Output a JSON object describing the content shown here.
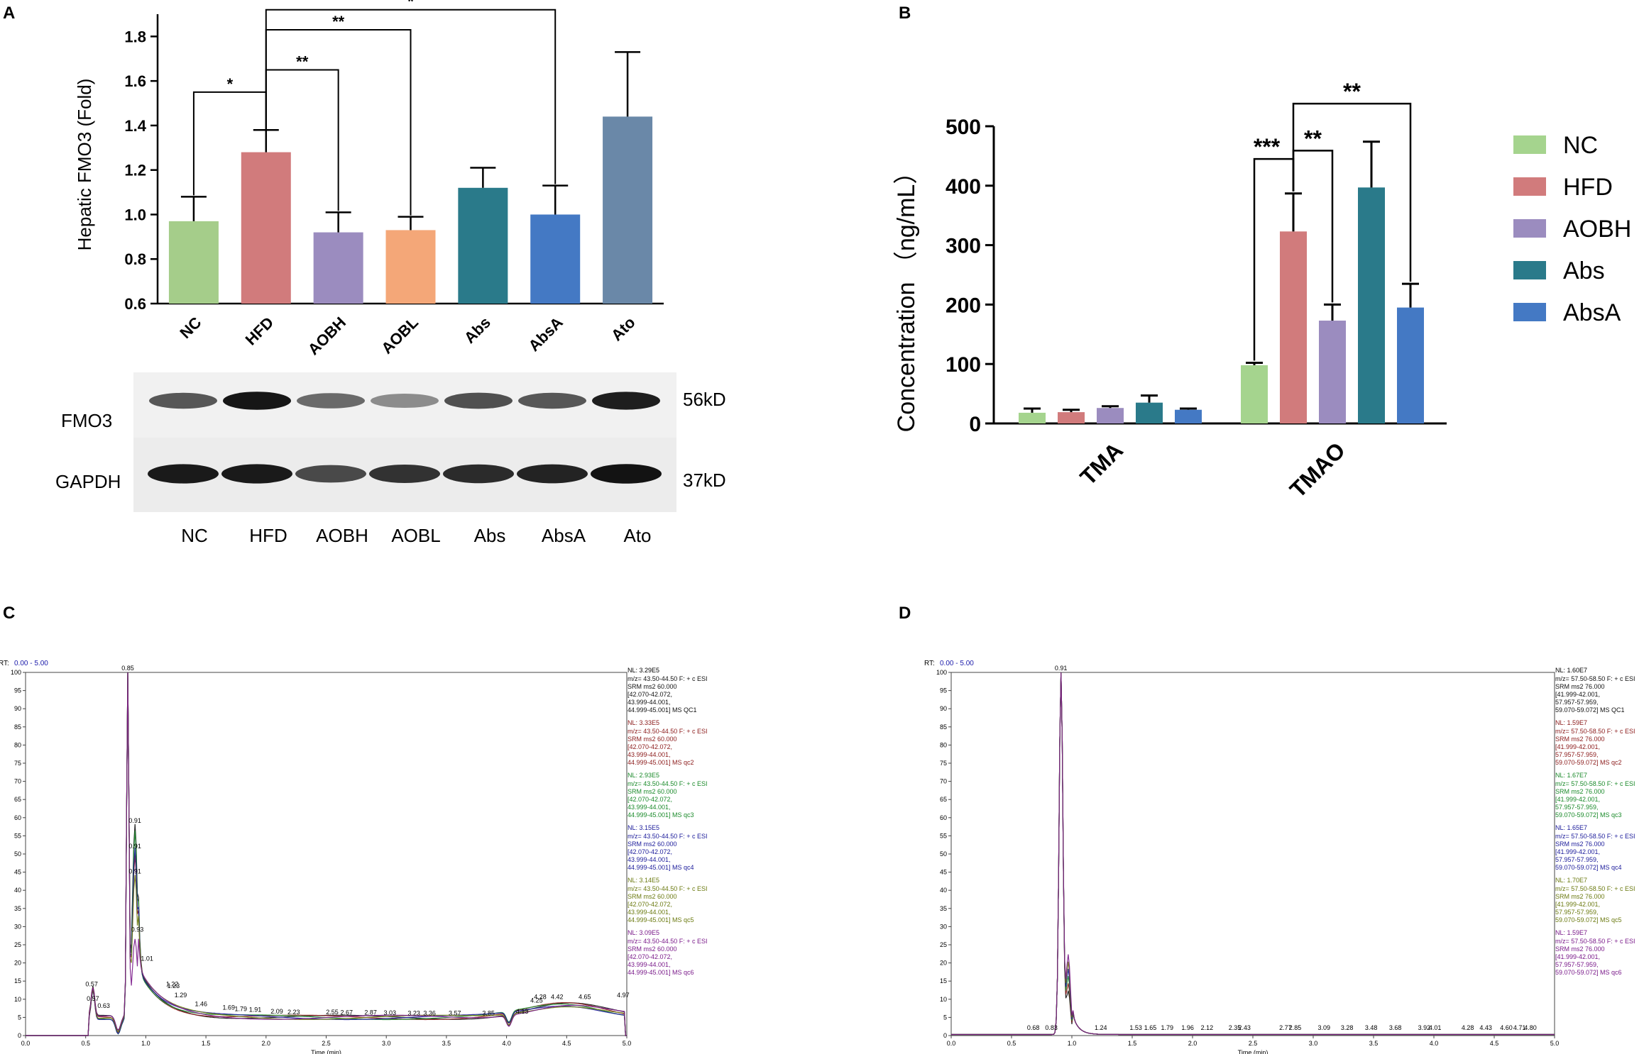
{
  "chart_data": [
    {
      "panel": "A",
      "type": "bar",
      "ylabel": "Hepatic FMO3 (Fold)",
      "ylim": [
        0.6,
        1.9
      ],
      "yticks": [
        "0.6",
        "0.8",
        "1.0",
        "1.2",
        "1.4",
        "1.6",
        "1.8"
      ],
      "categories": [
        "NC",
        "HFD",
        "AOBH",
        "AOBL",
        "Abs",
        "AbsA",
        "Ato"
      ],
      "values": [
        0.97,
        1.28,
        0.92,
        0.93,
        1.12,
        1.0,
        1.44
      ],
      "errors": [
        0.11,
        0.1,
        0.09,
        0.06,
        0.09,
        0.13,
        0.29
      ],
      "colors": [
        "#a5cd8a",
        "#d17b7c",
        "#9b8cbf",
        "#f4a778",
        "#2a7a8a",
        "#4479c4",
        "#6a88a8"
      ],
      "significance": [
        {
          "from": 0,
          "to": 1,
          "label": "*"
        },
        {
          "from": 1,
          "to": 2,
          "label": "**"
        },
        {
          "from": 1,
          "to": 3,
          "label": "**"
        },
        {
          "from": 1,
          "to": 5,
          "label": "*"
        }
      ],
      "western_blot": {
        "rows": [
          {
            "protein": "FMO3",
            "size": "56kD"
          },
          {
            "protein": "GAPDH",
            "size": "37kD"
          }
        ],
        "lanes": [
          "NC",
          "HFD",
          "AOBH",
          "AOBL",
          "Abs",
          "AbsA",
          "Ato"
        ],
        "band_intensity_fmo3": [
          0.55,
          0.95,
          0.45,
          0.25,
          0.6,
          0.55,
          0.9
        ],
        "band_intensity_gapdh": [
          0.9,
          0.9,
          0.6,
          0.75,
          0.8,
          0.85,
          0.95
        ]
      }
    },
    {
      "panel": "B",
      "type": "bar",
      "ylabel": "Concentration （ng/mL）",
      "ylim": [
        0,
        500
      ],
      "yticks": [
        "0",
        "100",
        "200",
        "300",
        "400",
        "500"
      ],
      "categories": [
        "TMA",
        "TMAO"
      ],
      "series": [
        {
          "name": "NC",
          "values": [
            18,
            98
          ],
          "errors": [
            7,
            4
          ],
          "color": "#a5d48e"
        },
        {
          "name": "HFD",
          "values": [
            19,
            323
          ],
          "errors": [
            4,
            64
          ],
          "color": "#d17b7c"
        },
        {
          "name": "AOBH",
          "values": [
            26,
            173
          ],
          "errors": [
            3,
            27
          ],
          "color": "#9b8cbf"
        },
        {
          "name": "Abs",
          "values": [
            35,
            397
          ],
          "errors": [
            12,
            77
          ],
          "color": "#2a7a8a"
        },
        {
          "name": "AbsA",
          "values": [
            23,
            195
          ],
          "errors": [
            2,
            40
          ],
          "color": "#4479c4"
        }
      ],
      "significance": [
        {
          "group": "TMAO",
          "from": 0,
          "to": 1,
          "label": "***"
        },
        {
          "group": "TMAO",
          "from": 1,
          "to": 2,
          "label": "**"
        },
        {
          "group": "TMAO",
          "from": 1,
          "to": 4,
          "label": "**"
        }
      ]
    },
    {
      "panel": "C",
      "type": "line",
      "rt_label": "RT: 0.00 - 5.00",
      "xlabel": "Time (min)",
      "xticks": [
        "0.0",
        "0.5",
        "1.0",
        "1.5",
        "2.0",
        "2.5",
        "3.0",
        "3.5",
        "4.0",
        "4.5",
        "5.0"
      ],
      "yticks": [
        "0",
        "5",
        "10",
        "15",
        "20",
        "25",
        "30",
        "35",
        "40",
        "45",
        "50",
        "55",
        "60",
        "65",
        "70",
        "75",
        "80",
        "85",
        "90",
        "95",
        "100"
      ],
      "peak_labels": [
        {
          "x": 0.85,
          "y": 100,
          "label": "0.85"
        },
        {
          "x": 0.55,
          "y": 13,
          "label": "0.57"
        },
        {
          "x": 0.56,
          "y": 9,
          "label": "0.57"
        },
        {
          "x": 0.65,
          "y": 7,
          "label": "0.63"
        },
        {
          "x": 0.91,
          "y": 58,
          "label": "0.91"
        },
        {
          "x": 0.91,
          "y": 51,
          "label": "0.91"
        },
        {
          "x": 0.91,
          "y": 44,
          "label": "0.91"
        },
        {
          "x": 0.93,
          "y": 28,
          "label": "0.93"
        },
        {
          "x": 1.01,
          "y": 20,
          "label": "1.01"
        },
        {
          "x": 1.22,
          "y": 13,
          "label": "1.22"
        },
        {
          "x": 1.23,
          "y": 12.5,
          "label": "1.23"
        },
        {
          "x": 1.29,
          "y": 10,
          "label": "1.29"
        },
        {
          "x": 1.46,
          "y": 7.5,
          "label": "1.46"
        },
        {
          "x": 1.69,
          "y": 6.5,
          "label": "1.69"
        },
        {
          "x": 1.79,
          "y": 6.2,
          "label": "1.79"
        },
        {
          "x": 1.91,
          "y": 6,
          "label": "1.91"
        },
        {
          "x": 2.09,
          "y": 5.5,
          "label": "2.09"
        },
        {
          "x": 2.23,
          "y": 5.3,
          "label": "2.23"
        },
        {
          "x": 2.55,
          "y": 5.3,
          "label": "2.55"
        },
        {
          "x": 2.67,
          "y": 5.2,
          "label": "2.67"
        },
        {
          "x": 2.87,
          "y": 5.2,
          "label": "2.87"
        },
        {
          "x": 3.03,
          "y": 5.1,
          "label": "3.03"
        },
        {
          "x": 3.23,
          "y": 5,
          "label": "3.23"
        },
        {
          "x": 3.36,
          "y": 5,
          "label": "3.36"
        },
        {
          "x": 3.57,
          "y": 5,
          "label": "3.57"
        },
        {
          "x": 3.85,
          "y": 5,
          "label": "3.85"
        },
        {
          "x": 4.13,
          "y": 5.5,
          "label": "4.13"
        },
        {
          "x": 4.25,
          "y": 8.5,
          "label": "4.25"
        },
        {
          "x": 4.28,
          "y": 9.5,
          "label": "4.28"
        },
        {
          "x": 4.42,
          "y": 9.5,
          "label": "4.42"
        },
        {
          "x": 4.65,
          "y": 9.5,
          "label": "4.65"
        },
        {
          "x": 4.97,
          "y": 10,
          "label": "4.97"
        }
      ],
      "traces": [
        {
          "color": "#111111",
          "NL": "NL: 3.29E5",
          "lines": [
            "m/z= 43.50-44.50 F: + c ESI",
            "SRM ms2 60.000",
            "[42.070-42.072,",
            "43.999-44.001,",
            "44.999-45.001]  MS QC1"
          ]
        },
        {
          "color": "#8b1a1a",
          "NL": "NL: 3.33E5",
          "lines": [
            "m/z= 43.50-44.50 F: + c ESI",
            "SRM ms2 60.000",
            "[42.070-42.072,",
            "43.999-44.001,",
            "44.999-45.001]  MS qc2"
          ]
        },
        {
          "color": "#1a8a2a",
          "NL": "NL: 2.93E5",
          "lines": [
            "m/z= 43.50-44.50 F: + c ESI",
            "SRM ms2 60.000",
            "[42.070-42.072,",
            "43.999-44.001,",
            "44.999-45.001]  MS qc3"
          ]
        },
        {
          "color": "#1a1a9a",
          "NL": "NL: 3.15E5",
          "lines": [
            "m/z= 43.50-44.50 F: + c ESI",
            "SRM ms2 60.000",
            "[42.070-42.072,",
            "43.999-44.001,",
            "44.999-45.001]  MS qc4"
          ]
        },
        {
          "color": "#6b7a10",
          "NL": "NL: 3.14E5",
          "lines": [
            "m/z= 43.50-44.50 F: + c ESI",
            "SRM ms2 60.000",
            "[42.070-42.072,",
            "43.999-44.001,",
            "44.999-45.001]  MS qc5"
          ]
        },
        {
          "color": "#7a1a8a",
          "NL": "NL: 3.09E5",
          "lines": [
            "m/z= 43.50-44.50 F: + c ESI",
            "SRM ms2 60.000",
            "[42.070-42.072,",
            "43.999-44.001,",
            "44.999-45.001]  MS qc6"
          ]
        }
      ]
    },
    {
      "panel": "D",
      "type": "line",
      "rt_label": "RT: 0.00 - 5.00",
      "xlabel": "Time (min)",
      "xticks": [
        "0.0",
        "0.5",
        "1.0",
        "1.5",
        "2.0",
        "2.5",
        "3.0",
        "3.5",
        "4.0",
        "4.5",
        "5.0"
      ],
      "yticks": [
        "0",
        "5",
        "10",
        "15",
        "20",
        "25",
        "30",
        "35",
        "40",
        "45",
        "50",
        "55",
        "60",
        "65",
        "70",
        "75",
        "80",
        "85",
        "90",
        "95",
        "100"
      ],
      "peak_labels": [
        {
          "x": 0.91,
          "y": 100,
          "label": "0.91"
        },
        {
          "x": 0.68,
          "y": 1,
          "label": "0.68"
        },
        {
          "x": 0.83,
          "y": 1,
          "label": "0.83"
        },
        {
          "x": 1.24,
          "y": 1,
          "label": "1.24"
        },
        {
          "x": 1.53,
          "y": 1,
          "label": "1.53"
        },
        {
          "x": 1.65,
          "y": 1,
          "label": "1.65"
        },
        {
          "x": 1.79,
          "y": 1,
          "label": "1.79"
        },
        {
          "x": 1.96,
          "y": 1,
          "label": "1.96"
        },
        {
          "x": 2.12,
          "y": 1,
          "label": "2.12"
        },
        {
          "x": 2.35,
          "y": 1,
          "label": "2.35"
        },
        {
          "x": 2.43,
          "y": 1,
          "label": "2.43"
        },
        {
          "x": 2.77,
          "y": 1,
          "label": "2.77"
        },
        {
          "x": 2.85,
          "y": 1,
          "label": "2.85"
        },
        {
          "x": 3.09,
          "y": 1,
          "label": "3.09"
        },
        {
          "x": 3.28,
          "y": 1,
          "label": "3.28"
        },
        {
          "x": 3.48,
          "y": 1,
          "label": "3.48"
        },
        {
          "x": 3.68,
          "y": 1,
          "label": "3.68"
        },
        {
          "x": 3.92,
          "y": 1,
          "label": "3.92"
        },
        {
          "x": 4.01,
          "y": 1,
          "label": "4.01"
        },
        {
          "x": 4.28,
          "y": 1,
          "label": "4.28"
        },
        {
          "x": 4.43,
          "y": 1,
          "label": "4.43"
        },
        {
          "x": 4.6,
          "y": 1,
          "label": "4.60"
        },
        {
          "x": 4.71,
          "y": 1,
          "label": "4.71"
        },
        {
          "x": 4.8,
          "y": 1,
          "label": "4.80"
        }
      ],
      "traces": [
        {
          "color": "#111111",
          "NL": "NL: 1.60E7",
          "lines": [
            "m/z= 57.50-58.50 F: + c ESI",
            "SRM ms2 76.000",
            "[41.999-42.001,",
            "57.957-57.959,",
            "59.070-59.072]  MS QC1"
          ]
        },
        {
          "color": "#8b1a1a",
          "NL": "NL: 1.59E7",
          "lines": [
            "m/z= 57.50-58.50 F: + c ESI",
            "SRM ms2 76.000",
            "[41.999-42.001,",
            "57.957-57.959,",
            "59.070-59.072]  MS qc2"
          ]
        },
        {
          "color": "#1a8a2a",
          "NL": "NL: 1.67E7",
          "lines": [
            "m/z= 57.50-58.50 F: + c ESI",
            "SRM ms2 76.000",
            "[41.999-42.001,",
            "57.957-57.959,",
            "59.070-59.072]  MS qc3"
          ]
        },
        {
          "color": "#1a1a9a",
          "NL": "NL: 1.65E7",
          "lines": [
            "m/z= 57.50-58.50 F: + c ESI",
            "SRM ms2 76.000",
            "[41.999-42.001,",
            "57.957-57.959,",
            "59.070-59.072]  MS qc4"
          ]
        },
        {
          "color": "#6b7a10",
          "NL": "NL: 1.70E7",
          "lines": [
            "m/z= 57.50-58.50 F: + c ESI",
            "SRM ms2 76.000",
            "[41.999-42.001,",
            "57.957-57.959,",
            "59.070-59.072]  MS qc5"
          ]
        },
        {
          "color": "#7a1a8a",
          "NL": "NL: 1.59E7",
          "lines": [
            "m/z= 57.50-58.50 F: + c ESI",
            "SRM ms2 76.000",
            "[41.999-42.001,",
            "57.957-57.959,",
            "59.070-59.072]  MS qc6"
          ]
        }
      ]
    }
  ],
  "panels": {
    "a": "A",
    "b": "B",
    "c": "C",
    "d": "D"
  }
}
